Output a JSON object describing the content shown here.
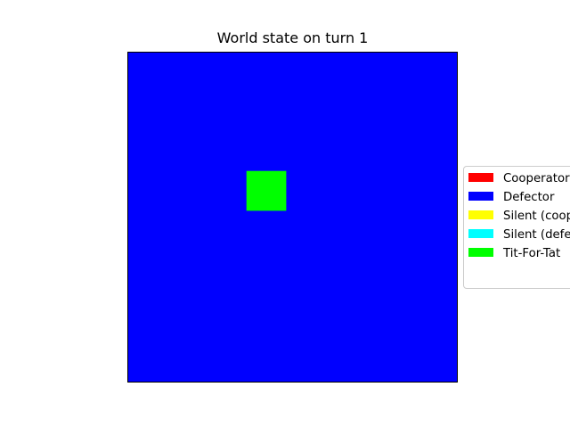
{
  "title": "World state on turn 1",
  "chart_data": {
    "type": "heatmap",
    "title": "World state on turn 1",
    "grid": false,
    "xlabel": "",
    "ylabel": "",
    "grid_size": [
      25,
      25
    ],
    "background_strategy": "Defector",
    "cells": [
      {
        "row": 9,
        "col": 9,
        "strategy": "Tit-For-Tat"
      },
      {
        "row": 9,
        "col": 10,
        "strategy": "Tit-For-Tat"
      },
      {
        "row": 9,
        "col": 11,
        "strategy": "Tit-For-Tat"
      },
      {
        "row": 10,
        "col": 9,
        "strategy": "Tit-For-Tat"
      },
      {
        "row": 10,
        "col": 10,
        "strategy": "Tit-For-Tat"
      },
      {
        "row": 10,
        "col": 11,
        "strategy": "Tit-For-Tat"
      },
      {
        "row": 11,
        "col": 9,
        "strategy": "Tit-For-Tat"
      },
      {
        "row": 11,
        "col": 10,
        "strategy": "Tit-For-Tat"
      },
      {
        "row": 11,
        "col": 11,
        "strategy": "Tit-For-Tat"
      }
    ],
    "legend": {
      "placement": "right",
      "entries": [
        {
          "label": "Cooperator",
          "color": "#ff0000"
        },
        {
          "label": "Defector",
          "color": "#0000ff"
        },
        {
          "label": "Silent (coop",
          "color": "#ffff00"
        },
        {
          "label": "Silent (defe",
          "color": "#00ffff"
        },
        {
          "label": "Tit-For-Tat",
          "color": "#00ff00"
        }
      ]
    }
  }
}
